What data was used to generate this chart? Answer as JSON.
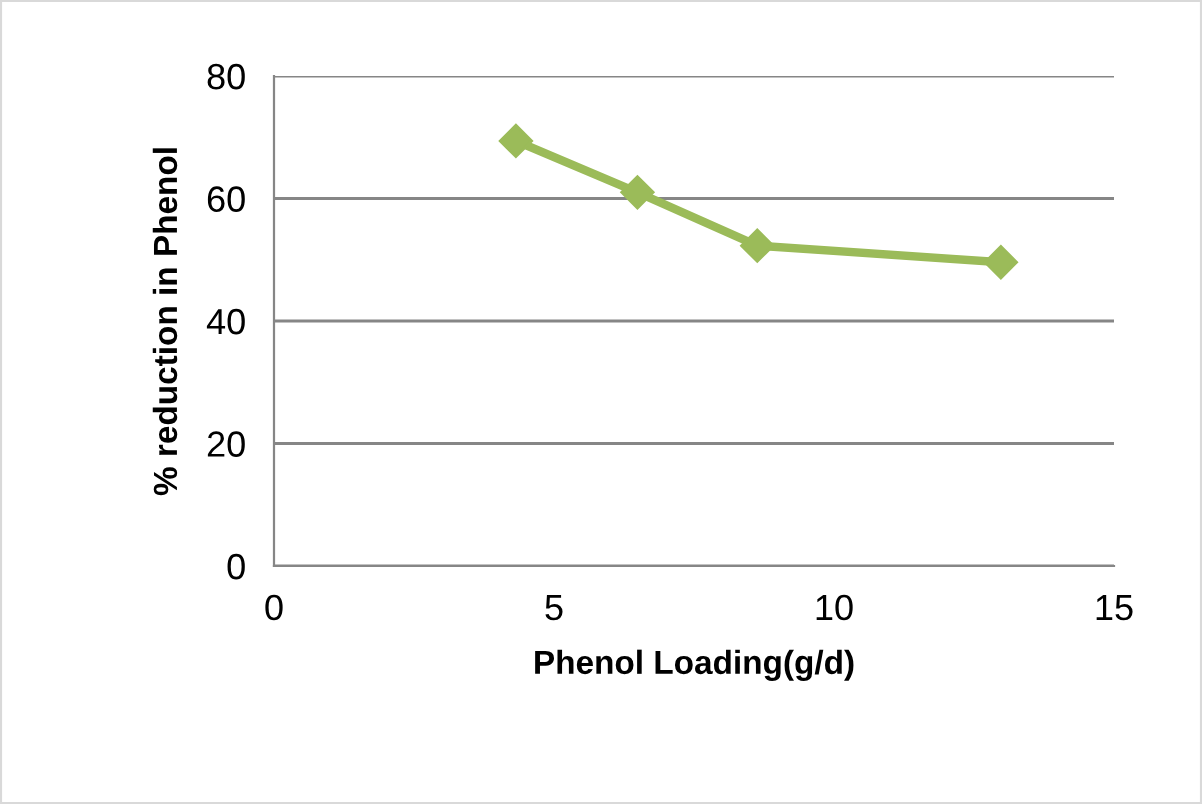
{
  "chart_data": {
    "type": "line",
    "xlabel": "Phenol Loading(g/d)",
    "ylabel": "% reduction in Phenol",
    "x": [
      4.32,
      6.49,
      8.63,
      12.98
    ],
    "series": [
      {
        "color": "#9bbb59",
        "values": [
          69.4,
          61.0,
          52.3,
          49.6
        ]
      }
    ],
    "xlim": [
      0,
      15
    ],
    "xticks": [
      0,
      5,
      10,
      15
    ],
    "ylim": [
      0,
      80
    ],
    "yticks": [
      0,
      20,
      40,
      60,
      80
    ],
    "grid": "y",
    "marker": "diamond",
    "line_style": "solid"
  }
}
